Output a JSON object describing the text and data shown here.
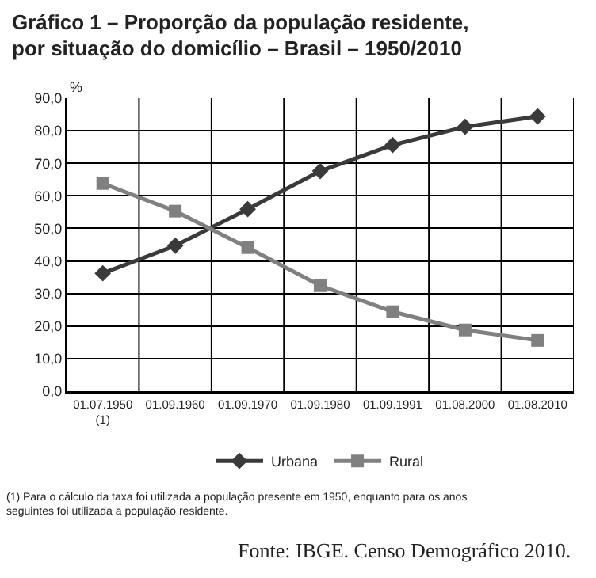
{
  "chart_data": {
    "type": "line",
    "title": "Gráfico 1 – Proporção da população residente, por situação do domicílio – Brasil – 1950/2010",
    "ylabel": "%",
    "categories": [
      "01.07.1950\n(1)",
      "01.09.1960",
      "01.09.1970",
      "01.09.1980",
      "01.09.1991",
      "01.08.2000",
      "01.08.2010"
    ],
    "series": [
      {
        "name": "Urbana",
        "color": "#3a3a3a",
        "marker": "diamond",
        "values": [
          36.2,
          44.7,
          55.9,
          67.6,
          75.6,
          81.2,
          84.4
        ]
      },
      {
        "name": "Rural",
        "color": "#808080",
        "marker": "square",
        "values": [
          63.8,
          55.3,
          44.1,
          32.4,
          24.4,
          18.8,
          15.6
        ]
      }
    ],
    "ylim": [
      0,
      90
    ],
    "yticks": [
      {
        "value": 0,
        "label": "0,0"
      },
      {
        "value": 10,
        "label": "10,0"
      },
      {
        "value": 20,
        "label": "20,0"
      },
      {
        "value": 30,
        "label": "30,0"
      },
      {
        "value": 40,
        "label": "40,0"
      },
      {
        "value": 50,
        "label": "50,0"
      },
      {
        "value": 60,
        "label": "60,0"
      },
      {
        "value": 70,
        "label": "70,0"
      },
      {
        "value": 80,
        "label": "80,0"
      },
      {
        "value": 90,
        "label": "90,0"
      }
    ],
    "grid": true,
    "legend": "bottom",
    "annotations": [
      "(1) Para o cálculo da taxa foi utilizada a população presente em 1950, enquanto para os anos seguintes foi utilizada a população residente.",
      "Fonte: IBGE. Censo Demográfico 2010."
    ]
  }
}
